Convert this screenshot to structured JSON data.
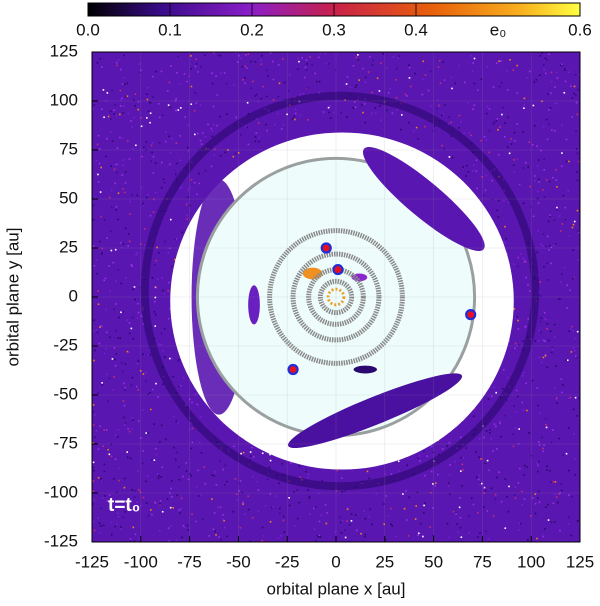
{
  "chart_data": {
    "type": "scatter",
    "xlabel": "orbital plane x [au]",
    "ylabel": "orbital plane y [au]",
    "xlim": [
      -125,
      125
    ],
    "ylim": [
      -125,
      125
    ],
    "xticks": [
      -125,
      -100,
      -75,
      -50,
      -25,
      0,
      25,
      50,
      75,
      100,
      125
    ],
    "yticks": [
      -125,
      -100,
      -75,
      -50,
      -25,
      0,
      25,
      50,
      75,
      100,
      125
    ],
    "grid": true,
    "x": [
      -5,
      1,
      69,
      -22
    ],
    "y": [
      25,
      14,
      -9,
      -37
    ],
    "color": "#e8101e",
    "edgecolor": "#1f2fd8",
    "colorbar": {
      "label": "e₀",
      "lim": [
        0,
        0.6
      ],
      "ticks": [
        {
          "value": 0,
          "label": "0.0"
        },
        0.1,
        0.2,
        0.3,
        0.4,
        0.6
      ]
    },
    "annotation": "t=t₀"
  }
}
